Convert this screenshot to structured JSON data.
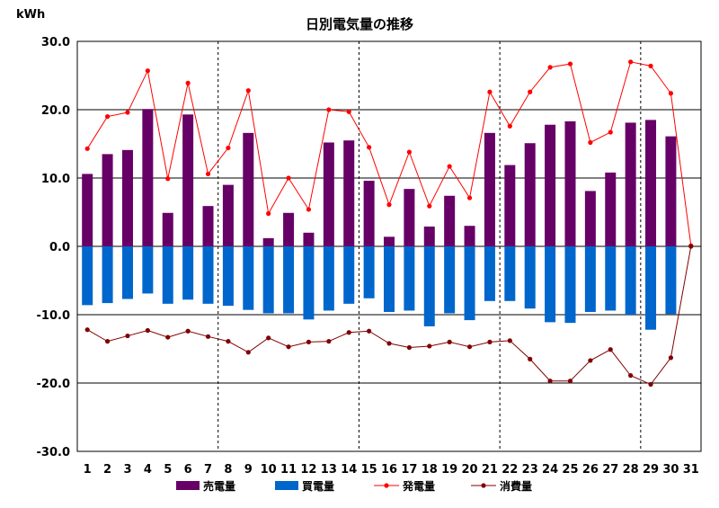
{
  "chart_data": {
    "type": "bar",
    "title": "日別電気量の推移",
    "ylabel": "kWh",
    "xlabel": "",
    "ylim": [
      -30,
      30
    ],
    "yticks": [
      "30.0",
      "20.0",
      "10.0",
      "0.0",
      "-10.0",
      "-20.0",
      "-30.0"
    ],
    "yticks_values": [
      30,
      20,
      10,
      0,
      -10,
      -20,
      -30
    ],
    "categories": [
      "1",
      "2",
      "3",
      "4",
      "5",
      "6",
      "7",
      "8",
      "9",
      "10",
      "11",
      "12",
      "13",
      "14",
      "15",
      "16",
      "17",
      "18",
      "19",
      "20",
      "21",
      "22",
      "23",
      "24",
      "25",
      "26",
      "27",
      "28",
      "29",
      "30",
      "31"
    ],
    "week_separators_after": [
      "7",
      "14",
      "21",
      "28"
    ],
    "grid": "horizontal",
    "legend_position": "bottom",
    "series": [
      {
        "name": "売電量",
        "kind": "bar",
        "color": "#660066",
        "values": [
          10.6,
          13.5,
          14.1,
          20.1,
          4.9,
          19.3,
          5.9,
          9.0,
          16.6,
          1.2,
          4.9,
          2.0,
          15.2,
          15.5,
          9.6,
          1.4,
          8.4,
          2.9,
          7.4,
          3.0,
          16.6,
          11.9,
          15.1,
          17.8,
          18.3,
          8.1,
          10.8,
          18.1,
          18.5,
          16.1,
          0
        ]
      },
      {
        "name": "買電量",
        "kind": "bar",
        "color": "#0066CC",
        "values": [
          -8.6,
          -8.3,
          -7.7,
          -6.9,
          -8.4,
          -7.8,
          -8.4,
          -8.7,
          -9.3,
          -9.8,
          -9.8,
          -10.7,
          -9.4,
          -8.4,
          -7.6,
          -9.6,
          -9.4,
          -11.7,
          -9.8,
          -10.8,
          -8.0,
          -8.0,
          -9.1,
          -11.1,
          -11.2,
          -9.6,
          -9.4,
          -10.0,
          -12.2,
          -9.9,
          0
        ]
      },
      {
        "name": "発電量",
        "kind": "line",
        "color": "#FF0000",
        "values": [
          14.3,
          19.0,
          19.6,
          25.7,
          9.9,
          23.9,
          10.6,
          14.4,
          22.8,
          4.8,
          10.0,
          5.4,
          20.0,
          19.7,
          14.5,
          6.1,
          13.8,
          5.9,
          11.7,
          7.1,
          22.6,
          17.6,
          22.6,
          26.2,
          26.7,
          15.2,
          16.7,
          27.0,
          26.4,
          22.4,
          0.1
        ]
      },
      {
        "name": "消費量",
        "kind": "line",
        "color": "#800000",
        "values": [
          -12.2,
          -13.9,
          -13.1,
          -12.3,
          -13.3,
          -12.4,
          -13.2,
          -13.9,
          -15.5,
          -13.4,
          -14.7,
          -14.0,
          -13.9,
          -12.6,
          -12.4,
          -14.2,
          -14.8,
          -14.6,
          -14.0,
          -14.7,
          -14.0,
          -13.8,
          -16.5,
          -19.7,
          -19.7,
          -16.7,
          -15.1,
          -18.9,
          -20.2,
          -16.3,
          0.0
        ]
      }
    ]
  }
}
